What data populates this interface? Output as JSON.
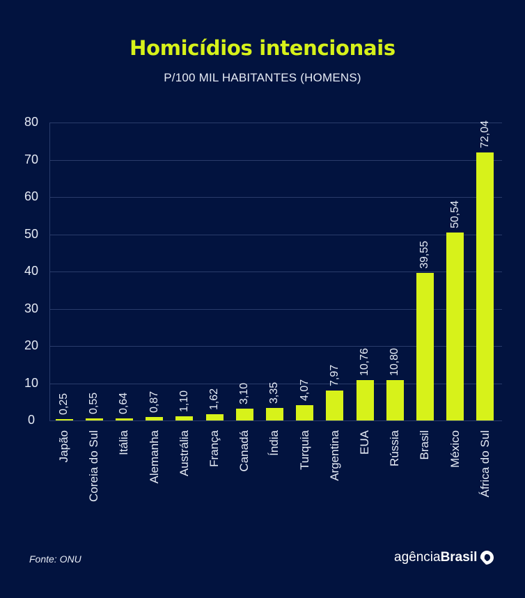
{
  "header": {
    "title": "Homicídios intencionais",
    "subtitle": "P/100 MIL HABITANTES (HOMENS)"
  },
  "footer": {
    "source": "Fonte: ONU",
    "brand_light": "agência",
    "brand_bold": "Brasil",
    "brand_icon": "brazil-map-pin-icon"
  },
  "colors": {
    "background": "#02133f",
    "bar": "#d7f21a",
    "title": "#d7f21a",
    "text": "#e6ebf5",
    "grid": "#2a3c6b"
  },
  "chart_data": {
    "type": "bar",
    "title": "Homicídios intencionais",
    "subtitle": "P/100 MIL HABITANTES (HOMENS)",
    "xlabel": "",
    "ylabel": "",
    "ylim": [
      0,
      80
    ],
    "yticks": [
      "0",
      "10",
      "20",
      "30",
      "40",
      "50",
      "60",
      "70",
      "80"
    ],
    "grid": true,
    "legend": null,
    "categories": [
      "Japão",
      "Coreia do Sul",
      "Itália",
      "Alemanha",
      "Austrália",
      "França",
      "Canadá",
      "Índia",
      "Turquia",
      "Argentina",
      "EUA",
      "Rússia",
      "Brasil",
      "México",
      "África do Sul"
    ],
    "values": [
      0.25,
      0.55,
      0.64,
      0.87,
      1.1,
      1.62,
      3.1,
      3.35,
      4.07,
      7.97,
      10.76,
      10.8,
      39.55,
      50.54,
      72.04
    ],
    "value_labels": [
      "0,25",
      "0,55",
      "0,64",
      "0,87",
      "1,10",
      "1,62",
      "3,10",
      "3,35",
      "4,07",
      "7,97",
      "10,76",
      "10,80",
      "39,55",
      "50,54",
      "72,04"
    ],
    "source": "Fonte: ONU"
  }
}
